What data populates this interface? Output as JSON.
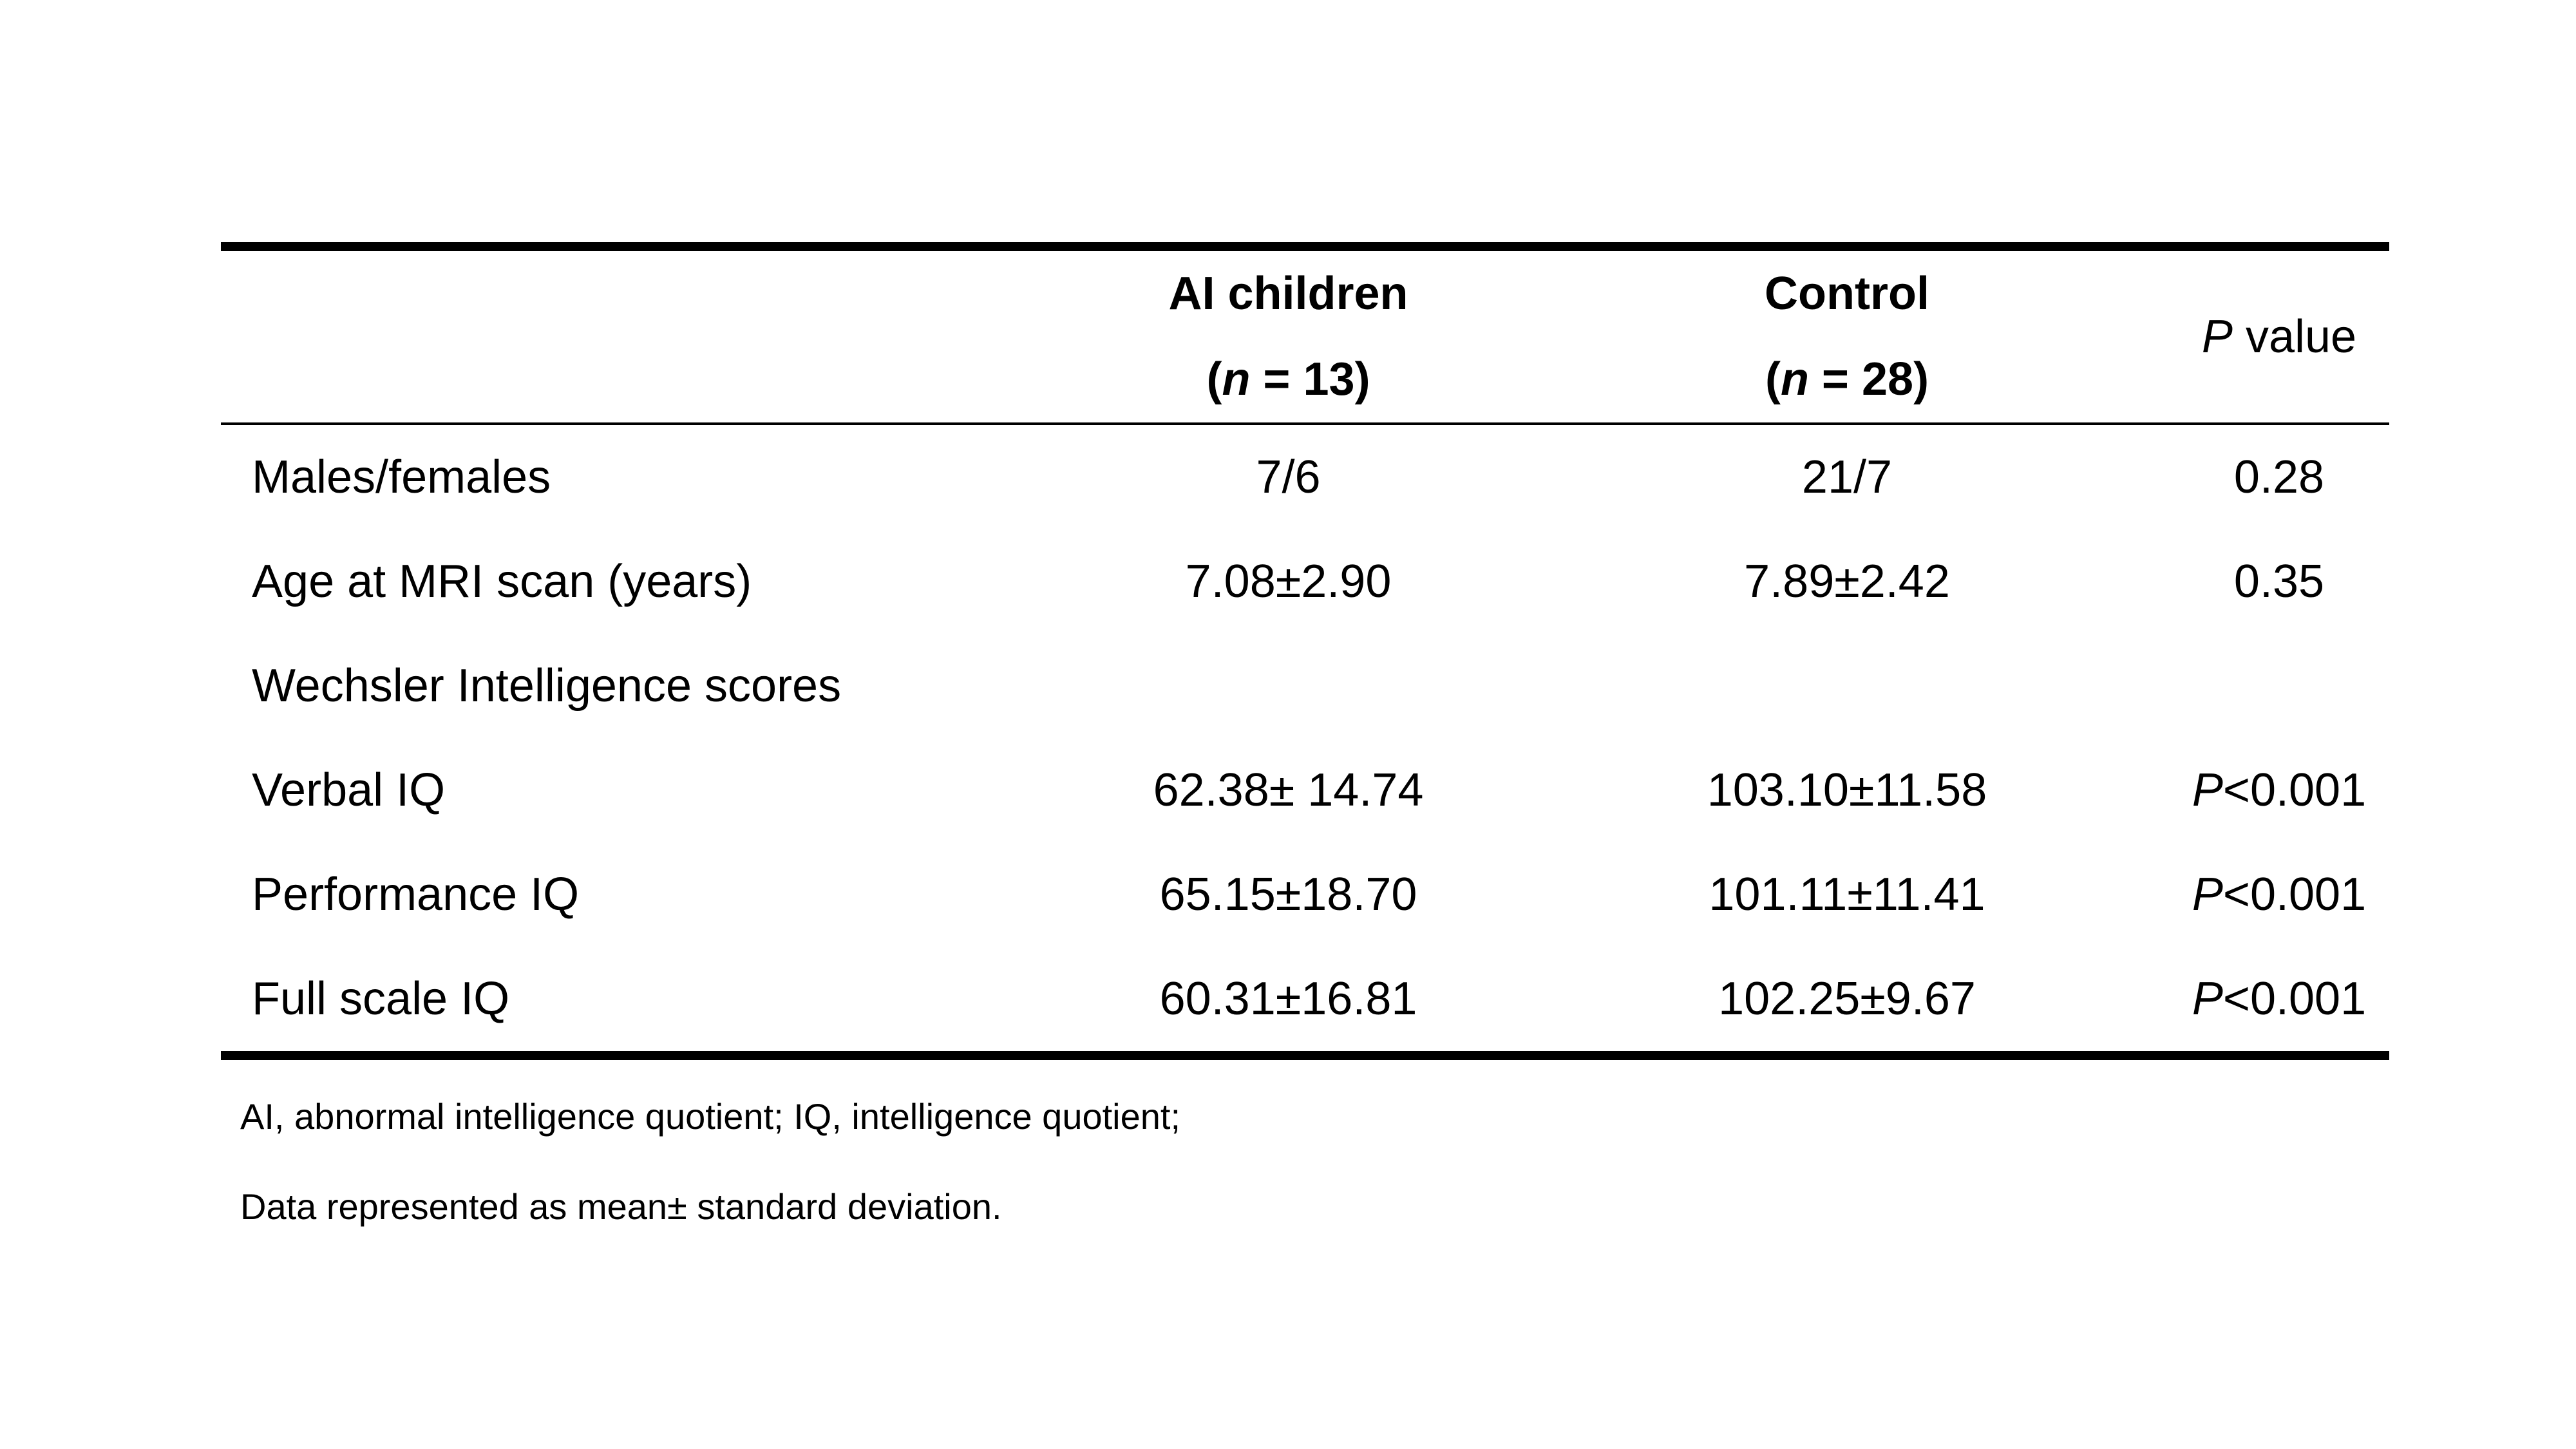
{
  "page": {
    "background_color": "#ffffff",
    "text_color": "#000000"
  },
  "table": {
    "header": {
      "ai_col": {
        "name": "AI children",
        "n_prefix": "(",
        "n": "n",
        "n_suffix": " = 13)"
      },
      "control_col": {
        "name": "Control",
        "n_prefix": "(",
        "n": "n",
        "n_suffix": " = 28)"
      },
      "p_col": {
        "p": "P",
        "suffix": " value"
      }
    },
    "rows": [
      {
        "label": "Males/females",
        "ai_value": "7/6",
        "control_value": "21/7",
        "p_italic": "",
        "p_value": "0.28"
      },
      {
        "label": "Age at MRI scan (years)",
        "ai_value": "7.08±2.90",
        "control_value": "7.89±2.42",
        "p_italic": "",
        "p_value": "0.35"
      },
      {
        "label": "Wechsler Intelligence scores",
        "ai_value": "",
        "control_value": "",
        "p_italic": "",
        "p_value": ""
      },
      {
        "label": "Verbal IQ",
        "ai_value": "62.38± 14.74",
        "control_value": "103.10±11.58",
        "p_italic": "P",
        "p_value": "<0.001"
      },
      {
        "label": "Performance IQ",
        "ai_value": "65.15±18.70",
        "control_value": "101.11±11.41",
        "p_italic": "P",
        "p_value": "<0.001"
      },
      {
        "label": "Full scale IQ",
        "ai_value": "60.31±16.81",
        "control_value": "102.25±9.67",
        "p_italic": "P",
        "p_value": "<0.001"
      }
    ],
    "footnotes": [
      "AI, abnormal intelligence quotient; IQ, intelligence quotient;",
      "Data represented as mean± standard deviation."
    ]
  }
}
